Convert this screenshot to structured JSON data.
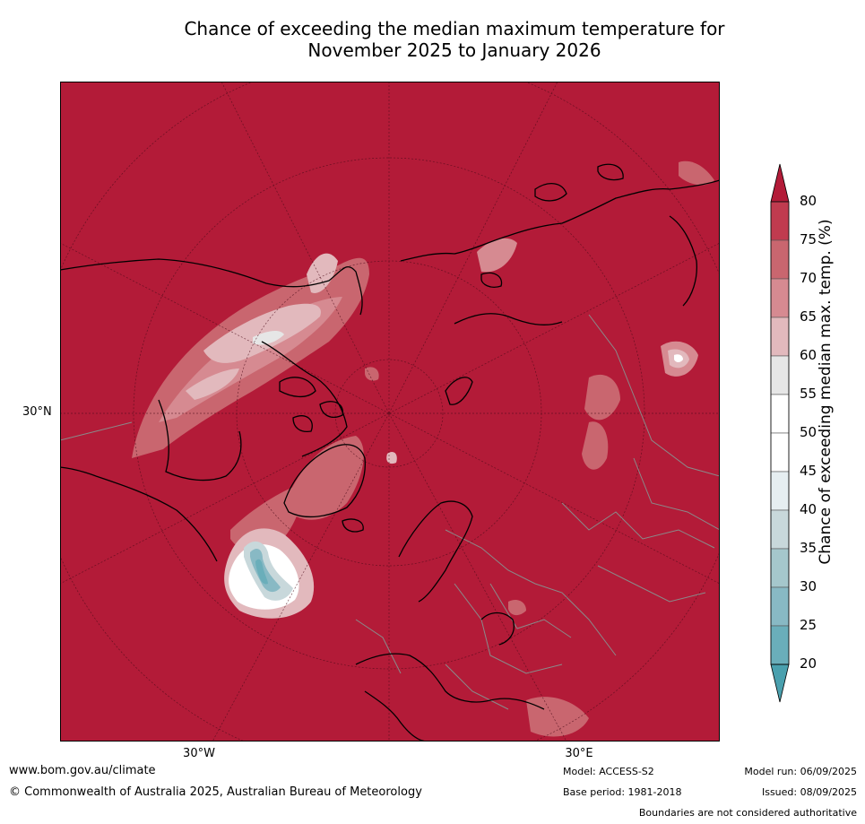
{
  "title_line1": "Chance of exceeding the median maximum temperature for",
  "title_line2": "November 2025 to January 2026",
  "map": {
    "lat_label": "30°N",
    "lon_labels": [
      "30°W",
      "30°E"
    ],
    "base_color": "#b31b38",
    "land_outline_color": "#000000",
    "border_color": "#8a8a8a"
  },
  "colorbar": {
    "title": "Chance of exceeding median max. temp. (%)",
    "ticks": [
      "80",
      "75",
      "70",
      "65",
      "60",
      "55",
      "50",
      "45",
      "40",
      "35",
      "30",
      "25",
      "20"
    ],
    "bins": [
      {
        "range": "above 80",
        "color": "#b31b38"
      },
      {
        "range": "75-80",
        "color": "#c03b4f"
      },
      {
        "range": "70-75",
        "color": "#c9666f"
      },
      {
        "range": "65-70",
        "color": "#d68a91"
      },
      {
        "range": "60-65",
        "color": "#e2b9bd"
      },
      {
        "range": "55-60",
        "color": "#e6e6e6"
      },
      {
        "range": "50-55",
        "color": "#ffffff"
      },
      {
        "range": "45-50",
        "color": "#ffffff"
      },
      {
        "range": "40-45",
        "color": "#e6eef1"
      },
      {
        "range": "35-40",
        "color": "#c8d8db"
      },
      {
        "range": "30-35",
        "color": "#a5c7cc"
      },
      {
        "range": "25-30",
        "color": "#88b9c4"
      },
      {
        "range": "20-25",
        "color": "#6aaeba"
      },
      {
        "range": "below 20",
        "color": "#4aa0ae"
      }
    ]
  },
  "footer": {
    "website": "www.bom.gov.au/climate",
    "copyright": "© Commonwealth of Australia 2025, Australian Bureau of Meteorology",
    "model": "Model: ACCESS-S2",
    "base_period": "Base period: 1981-2018",
    "model_run": "Model run: 06/09/2025",
    "issued": "Issued: 08/09/2025",
    "disclaimer": "Boundaries are not considered authoritative"
  }
}
